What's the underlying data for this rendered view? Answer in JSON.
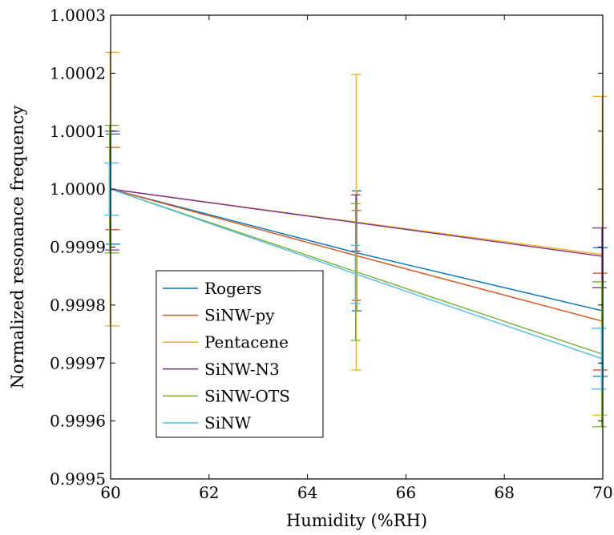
{
  "chart_data": {
    "type": "line",
    "title": "",
    "xlabel": "Humidity (%RH)",
    "ylabel": "Normalized resonance frequency",
    "xlim": [
      60,
      70
    ],
    "ylim": [
      0.9995,
      1.0003
    ],
    "x_ticks": [
      60,
      62,
      64,
      66,
      68,
      70
    ],
    "x_tick_labels": [
      "60",
      "62",
      "64",
      "66",
      "68",
      "70"
    ],
    "y_ticks": [
      0.9995,
      0.9996,
      0.9997,
      0.9998,
      0.9999,
      1.0,
      1.0001,
      1.0002,
      1.0003
    ],
    "y_tick_labels": [
      "0.9995",
      "0.9996",
      "0.9997",
      "0.9998",
      "0.9999",
      "1.0000",
      "1.0001",
      "1.0002",
      "1.0003"
    ],
    "grid": false,
    "legend_position": "bottom-left",
    "x": [
      60,
      65,
      70
    ],
    "series": [
      {
        "name": "Rogers",
        "color": "#0072bd",
        "values": [
          1.0,
          0.99989,
          0.99979
        ],
        "err_low": [
          0.999905,
          0.99979,
          0.999677
        ],
        "err_high": [
          1.000095,
          0.999997,
          0.999899
        ]
      },
      {
        "name": "SiNW-py",
        "color": "#d95319",
        "values": [
          1.0,
          0.999885,
          0.999772
        ],
        "err_low": [
          0.99993,
          0.999808,
          0.999688
        ],
        "err_high": [
          1.000072,
          0.999963,
          0.999855
        ]
      },
      {
        "name": "Pentacene",
        "color": "#edb120",
        "values": [
          1.0,
          0.999943,
          0.999887
        ],
        "err_low": [
          0.999764,
          0.999688,
          0.99961
        ],
        "err_high": [
          1.000236,
          1.000198,
          1.00016
        ]
      },
      {
        "name": "SiNW-N3",
        "color": "#7e2f8e",
        "values": [
          1.0,
          0.999942,
          0.999884
        ],
        "err_low": [
          0.999895,
          0.999893,
          0.99983
        ],
        "err_high": [
          1.0001,
          0.99999,
          0.999933
        ]
      },
      {
        "name": "SiNW-OTS",
        "color": "#77ac30",
        "values": [
          1.0,
          0.999857,
          0.999715
        ],
        "err_low": [
          0.99989,
          0.999739,
          0.99959
        ],
        "err_high": [
          1.00011,
          0.999975,
          0.99984
        ]
      },
      {
        "name": "SiNW",
        "color": "#4dbeee",
        "values": [
          1.0,
          0.999853,
          0.999707
        ],
        "err_low": [
          0.999955,
          0.999803,
          0.999655
        ],
        "err_high": [
          1.000045,
          0.999903,
          0.99976
        ]
      }
    ]
  }
}
